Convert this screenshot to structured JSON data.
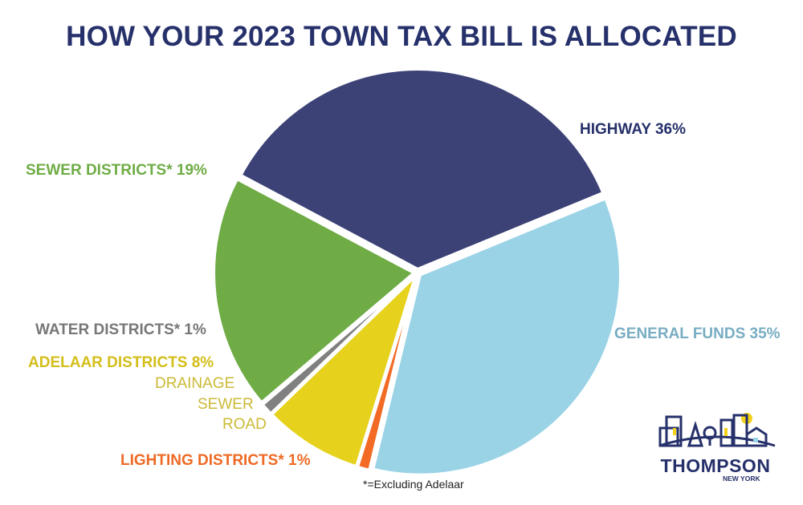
{
  "chart_data": {
    "type": "pie",
    "title": "HOW YOUR 2023 TOWN TAX BILL IS ALLOCATED",
    "slices": [
      {
        "label": "HIGHWAY 36%",
        "value": 36,
        "color": "#3c4276"
      },
      {
        "label": "GENERAL FUNDS 35%",
        "value": 35,
        "color": "#9ad3e6"
      },
      {
        "label": "LIGHTING DISTRICTS* 1%",
        "value": 1,
        "color": "#f26a24"
      },
      {
        "label": "ADELAAR DISTRICTS  8%",
        "value": 8,
        "color": "#e6d21c",
        "sublabels": [
          "DRAINAGE",
          "SEWER",
          "ROAD"
        ]
      },
      {
        "label": "WATER DISTRICTS* 1%",
        "value": 1,
        "color": "#808080"
      },
      {
        "label": "SEWER DISTRICTS* 19%",
        "value": 19,
        "color": "#6fac45"
      }
    ],
    "label_colors": {
      "highway": "#26306a",
      "general": "#78adc2",
      "lighting": "#ee6a24",
      "adelaar": "#d4be1a",
      "adelaar_sub": "#cbb935",
      "water": "#777777",
      "sewer": "#6fac45"
    },
    "footnote": "*=Excluding Adelaar"
  },
  "logo": {
    "name": "THOMPSON",
    "sub": "NEW YORK",
    "icon": "town-skyline-logo-icon"
  }
}
